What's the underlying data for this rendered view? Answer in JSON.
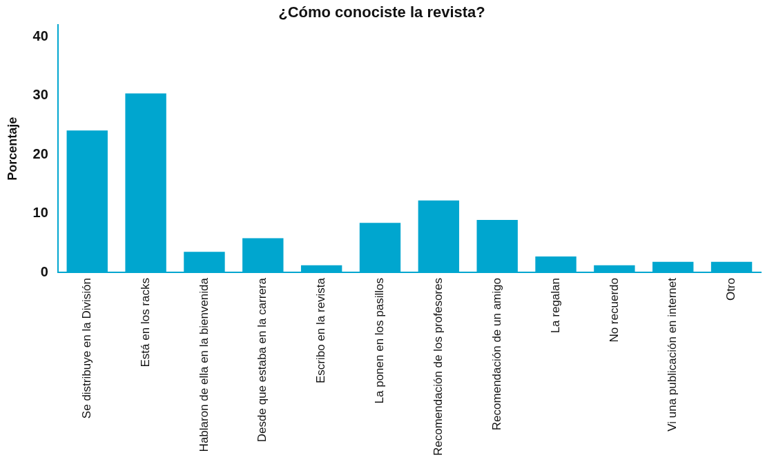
{
  "chart_data": {
    "type": "bar",
    "title": "¿Cómo conociste la revista?",
    "ylabel": "Porcentaje",
    "categories": [
      "Se distribuye en la División",
      "Está en los racks",
      "Hablaron de ella en la bienvenida",
      "Desde que estaba en la carrera",
      "Escribo en la revista",
      "La ponen en los pasillos",
      "Recomendación de los profesores",
      "Recomendación de un amigo",
      "La regalan",
      "No recuerdo",
      "Vi una publicación en internet",
      "Otro"
    ],
    "values": [
      24.1,
      30.4,
      3.5,
      5.8,
      1.2,
      8.4,
      12.2,
      8.9,
      2.7,
      1.2,
      1.8,
      1.8
    ],
    "color": "#00a6cf",
    "ylim": [
      0,
      42
    ],
    "yticks": [
      0,
      10,
      20,
      30,
      40
    ],
    "grid": false,
    "legend": false
  }
}
